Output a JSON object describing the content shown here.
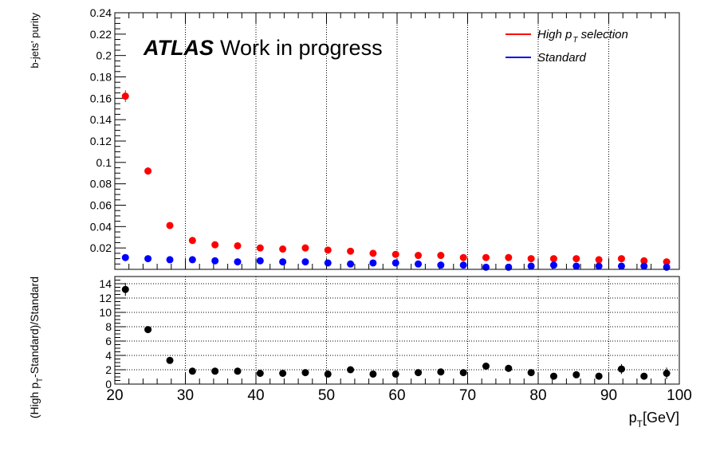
{
  "chart_data": [
    {
      "type": "scatter",
      "ylabel": "b-jets' purity",
      "annotation": {
        "bold": "ATLAS",
        "rest": "Work in progress"
      },
      "ylim": [
        0,
        0.24
      ],
      "yticks": [
        0.02,
        0.04,
        0.06,
        0.08,
        0.1,
        0.12,
        0.14,
        0.16,
        0.18,
        0.2,
        0.22,
        0.24
      ],
      "grid": "vertical dotted",
      "legend_placement": "top-right",
      "legend": {
        "high": {
          "prefix": "High ",
          "p": "p",
          "sub": "T",
          "suffix": " selection"
        },
        "standard": "Standard"
      },
      "series": [
        {
          "key": "high",
          "color": "#ff0000",
          "x": [
            21.5,
            24.7,
            27.8,
            31.0,
            34.2,
            37.4,
            40.6,
            43.8,
            47.0,
            50.2,
            53.4,
            56.6,
            59.8,
            63.0,
            66.2,
            69.4,
            72.6,
            75.8,
            79.0,
            82.2,
            85.4,
            88.6,
            91.8,
            95.0,
            98.2
          ],
          "y": [
            0.162,
            0.092,
            0.041,
            0.027,
            0.023,
            0.022,
            0.02,
            0.019,
            0.02,
            0.018,
            0.017,
            0.015,
            0.014,
            0.013,
            0.013,
            0.011,
            0.011,
            0.011,
            0.01,
            0.01,
            0.01,
            0.009,
            0.01,
            0.008,
            0.007
          ],
          "err": [
            0.0055,
            0.0035,
            0.002,
            0.0015,
            0.0012,
            0.001,
            0.001,
            0.001,
            0.001,
            0.001,
            0.001,
            0.001,
            0.001,
            0.001,
            0.001,
            0.001,
            0.001,
            0.001,
            0.001,
            0.001,
            0.001,
            0.001,
            0.001,
            0.001,
            0.0015
          ]
        },
        {
          "key": "standard",
          "color": "#0000ff",
          "x": [
            21.5,
            24.7,
            27.8,
            31.0,
            34.2,
            37.4,
            40.6,
            43.8,
            47.0,
            50.2,
            53.4,
            56.6,
            59.8,
            63.0,
            66.2,
            69.4,
            72.6,
            75.8,
            79.0,
            82.2,
            85.4,
            88.6,
            91.8,
            95.0,
            98.2
          ],
          "y": [
            0.011,
            0.01,
            0.009,
            0.009,
            0.008,
            0.007,
            0.008,
            0.007,
            0.007,
            0.006,
            0.005,
            0.006,
            0.006,
            0.005,
            0.004,
            0.004,
            0.002,
            0.002,
            0.003,
            0.004,
            0.003,
            0.003,
            0.003,
            0.003,
            0.002
          ]
        }
      ]
    },
    {
      "type": "scatter",
      "ylabel": {
        "a": "(High p",
        "sub": "T",
        "b": "-Standard)/Standard"
      },
      "xlabel": {
        "p": "p",
        "sub": "T",
        "rest": "[GeV]"
      },
      "xlim": [
        20,
        100
      ],
      "xticks": [
        20,
        30,
        40,
        50,
        60,
        70,
        80,
        90,
        100
      ],
      "ylim": [
        0,
        15
      ],
      "yticks": [
        0,
        2,
        4,
        6,
        8,
        10,
        12,
        14
      ],
      "grid": "dotted",
      "series": [
        {
          "color": "#000000",
          "x": [
            21.5,
            24.7,
            27.8,
            31.0,
            34.2,
            37.4,
            40.6,
            43.8,
            47.0,
            50.2,
            53.4,
            56.6,
            59.8,
            63.0,
            66.2,
            69.4,
            72.6,
            75.8,
            79.0,
            82.2,
            85.4,
            88.6,
            91.8,
            95.0,
            98.2
          ],
          "y": [
            13.2,
            7.6,
            3.3,
            1.8,
            1.8,
            1.8,
            1.5,
            1.5,
            1.6,
            1.4,
            2.0,
            1.4,
            1.4,
            1.6,
            1.7,
            1.6,
            2.5,
            2.2,
            1.6,
            1.1,
            1.3,
            1.1,
            2.1,
            1.1,
            1.5
          ],
          "err": [
            0.9,
            0.35,
            0.25,
            0.15,
            0.15,
            0.15,
            0.15,
            0.15,
            0.15,
            0.15,
            0.2,
            0.15,
            0.15,
            0.15,
            0.2,
            0.2,
            0.3,
            0.3,
            0.25,
            0.2,
            0.25,
            0.25,
            0.7,
            0.4,
            0.8
          ]
        }
      ]
    }
  ]
}
